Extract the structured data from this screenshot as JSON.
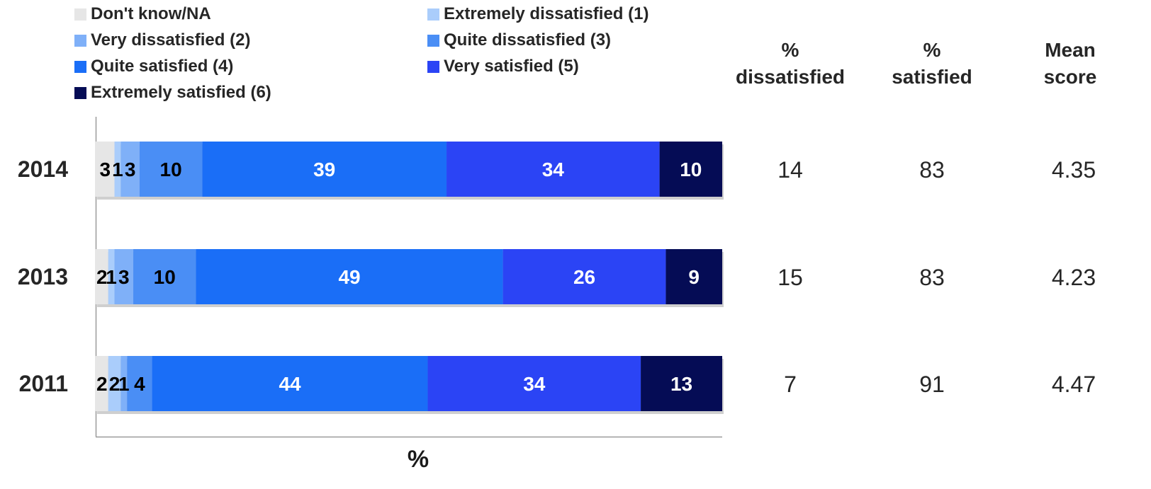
{
  "chart_data": {
    "type": "bar",
    "orientation": "horizontal",
    "stacked": true,
    "xlabel": "%",
    "xlim": [
      0,
      100
    ],
    "categories": [
      "2014",
      "2013",
      "2011"
    ],
    "series": [
      {
        "name": "Don't know/NA",
        "color": "#e6e6e6",
        "label_color": "#000000",
        "values": [
          3,
          2,
          2
        ]
      },
      {
        "name": "Extremely dissatisfied (1)",
        "color": "#aacdfb",
        "label_color": "#000000",
        "values": [
          1,
          1,
          2
        ]
      },
      {
        "name": "Very dissatisfied (2)",
        "color": "#7fb0f8",
        "label_color": "#000000",
        "values": [
          3,
          3,
          1
        ]
      },
      {
        "name": "Quite dissatisfied (3)",
        "color": "#4a8ef5",
        "label_color": "#000000",
        "values": [
          10,
          10,
          4
        ]
      },
      {
        "name": "Quite satisfied (4)",
        "color": "#1a6ef7",
        "label_color": "#ffffff",
        "values": [
          39,
          49,
          44
        ]
      },
      {
        "name": "Very satisfied (5)",
        "color": "#2b44f5",
        "label_color": "#ffffff",
        "values": [
          34,
          26,
          34
        ]
      },
      {
        "name": "Extremely satisfied (6)",
        "color": "#050c55",
        "label_color": "#ffffff",
        "values": [
          10,
          9,
          13
        ]
      }
    ],
    "legend_placement": "top",
    "grid": false
  },
  "summary": {
    "headers": {
      "dissatisfied": [
        "%",
        "dissatisfied"
      ],
      "satisfied": [
        "%",
        "satisfied"
      ],
      "mean": [
        "Mean",
        "score"
      ]
    },
    "rows": [
      {
        "dissatisfied": "14",
        "satisfied": "83",
        "mean": "4.35"
      },
      {
        "dissatisfied": "15",
        "satisfied": "83",
        "mean": "4.23"
      },
      {
        "dissatisfied": "7",
        "satisfied": "91",
        "mean": "4.47"
      }
    ]
  }
}
